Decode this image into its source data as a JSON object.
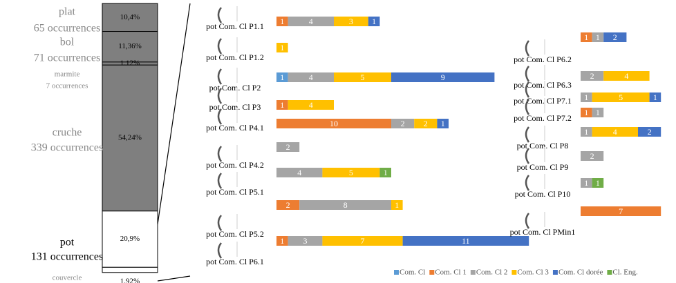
{
  "chart_data": [
    {
      "type": "stacked_column",
      "categories": [
        "plat",
        "bol",
        "marmite",
        "cruche",
        "pot",
        "couvercle"
      ],
      "occurrence_labels": [
        "65 occurrences",
        "71 occurrences",
        "7 occurrences",
        "339 occurrences",
        "131 occurrences",
        null
      ],
      "values": [
        10.4,
        11.36,
        1.12,
        54.24,
        20.9,
        1.92
      ],
      "value_labels": [
        "10,4%",
        "11,36%",
        "1,12%",
        "54,24%",
        "20,9%",
        "1,92%"
      ],
      "colors": [
        "#7f7f7f",
        "#7f7f7f",
        "#7f7f7f",
        "#7f7f7f",
        "#ffffff",
        "#ffffff"
      ]
    },
    {
      "type": "stacked_barh",
      "categories": [
        "pot Com. Cl P1.1",
        "pot Com. Cl P1.2",
        "pot Com. Cl P2",
        "pot Com. Cl P3",
        "pot Com. Cl P4.1",
        "pot Com. Cl P4.2",
        "pot Com. Cl P5.1",
        "pot Com. Cl P5.2",
        "pot Com. Cl P6.1",
        "pot Com. Cl P6.2",
        "pot Com. Cl P6.3",
        "pot Com. Cl P7.1",
        "pot Com. Cl P7.2",
        "pot Com. Cl P8",
        "pot Com. Cl P9",
        "pot Com. Cl P10",
        "pot Com. Cl PMin1"
      ],
      "series": [
        {
          "name": "Com. Cl",
          "color": "#5b9bd5",
          "values": [
            null,
            null,
            1,
            null,
            null,
            null,
            null,
            null,
            null,
            null,
            null,
            null,
            null,
            null,
            null,
            null,
            null
          ]
        },
        {
          "name": "Com. Cl 1",
          "color": "#ed7d31",
          "values": [
            1,
            null,
            null,
            1,
            10,
            null,
            null,
            2,
            1,
            1,
            null,
            null,
            1,
            null,
            null,
            null,
            7
          ]
        },
        {
          "name": "Com. Cl 2",
          "color": "#a5a5a5",
          "values": [
            4,
            null,
            4,
            null,
            2,
            2,
            4,
            8,
            3,
            1,
            2,
            1,
            1,
            1,
            2,
            1,
            null
          ]
        },
        {
          "name": "Com. Cl 3",
          "color": "#ffc000",
          "values": [
            3,
            1,
            5,
            4,
            2,
            null,
            5,
            1,
            7,
            null,
            4,
            5,
            null,
            4,
            null,
            null,
            null
          ]
        },
        {
          "name": "Com. Cl dorée",
          "color": "#4472c4",
          "values": [
            1,
            null,
            9,
            null,
            1,
            null,
            null,
            null,
            11,
            2,
            null,
            1,
            null,
            2,
            null,
            null,
            null
          ]
        },
        {
          "name": "Cl. Eng.",
          "color": "#70ad47",
          "values": [
            null,
            null,
            null,
            null,
            null,
            null,
            1,
            null,
            null,
            null,
            null,
            null,
            null,
            null,
            null,
            1,
            null
          ]
        }
      ]
    }
  ]
}
